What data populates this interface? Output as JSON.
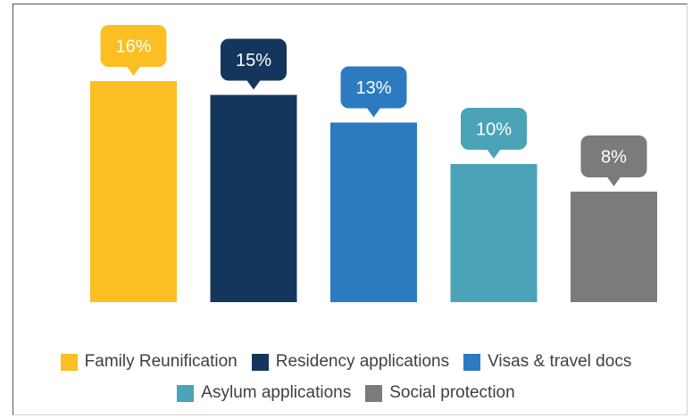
{
  "chart_data": {
    "type": "bar",
    "categories": [
      "Family Reunification",
      "Residency applications",
      "Visas & travel docs",
      "Asylum applications",
      "Social protection"
    ],
    "values": [
      16,
      15,
      13,
      10,
      8
    ],
    "data_labels": [
      "16%",
      "15%",
      "13%",
      "10%",
      "8%"
    ],
    "colors": [
      "#fbbf24",
      "#14365c",
      "#2c7bc0",
      "#4ba3b8",
      "#7b7b7b"
    ],
    "ylim": [
      0,
      16
    ],
    "grid": false,
    "legend_placement": "bottom",
    "title": "",
    "xlabel": "",
    "ylabel": ""
  },
  "legend": {
    "row1": [
      {
        "label": "Family Reunification",
        "color": "#fbbf24"
      },
      {
        "label": "Residency applications",
        "color": "#14365c"
      },
      {
        "label": "Visas & travel docs",
        "color": "#2c7bc0"
      }
    ],
    "row2": [
      {
        "label": "Asylum applications",
        "color": "#4ba3b8"
      },
      {
        "label": "Social protection",
        "color": "#7b7b7b"
      }
    ]
  }
}
